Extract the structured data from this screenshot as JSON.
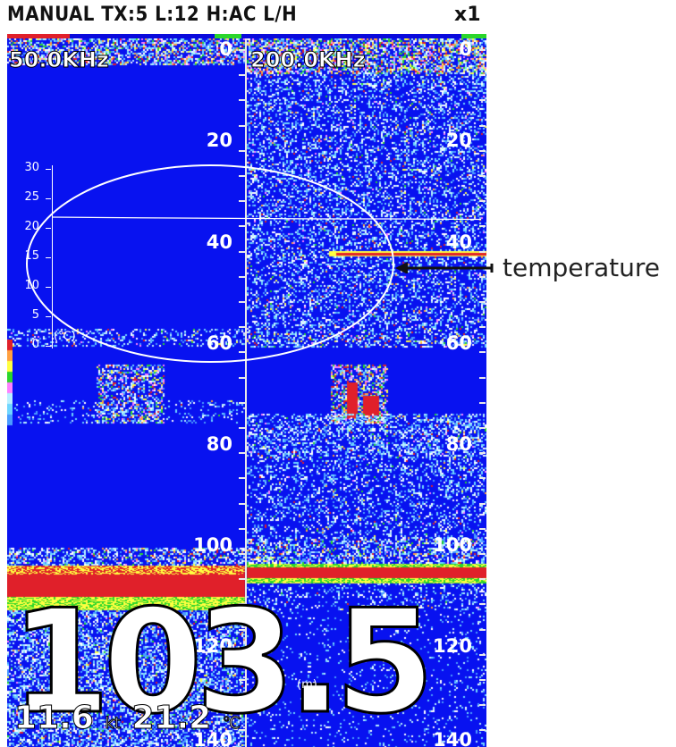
{
  "header": {
    "mode": "MANUAL TX:5 L:12 H:AC L/H",
    "zoom": "x1"
  },
  "left_channel": {
    "frequency": "50.0KHz"
  },
  "right_channel": {
    "frequency": "200.0KHz"
  },
  "depth_scale": {
    "center": [
      "0",
      "20",
      "40",
      "60",
      "80",
      "100",
      "120",
      "140"
    ],
    "right": [
      "0",
      "20",
      "40",
      "60",
      "80",
      "100",
      "120",
      "140"
    ]
  },
  "temperature_scale": {
    "labels": [
      "30",
      "25",
      "20",
      "15",
      "10",
      "5",
      "0"
    ],
    "unit": "(℃)"
  },
  "readout": {
    "depth_value": "103.5",
    "depth_unit": "(m)",
    "speed_value": "11.6",
    "speed_unit": "kt",
    "temperature_value": "21.2",
    "temperature_unit": "℃"
  },
  "annotation": {
    "label": "temperature"
  },
  "colors": {
    "water": "#0812f0",
    "bottom": "#e0202a",
    "accent_green": "#2bd62b"
  }
}
